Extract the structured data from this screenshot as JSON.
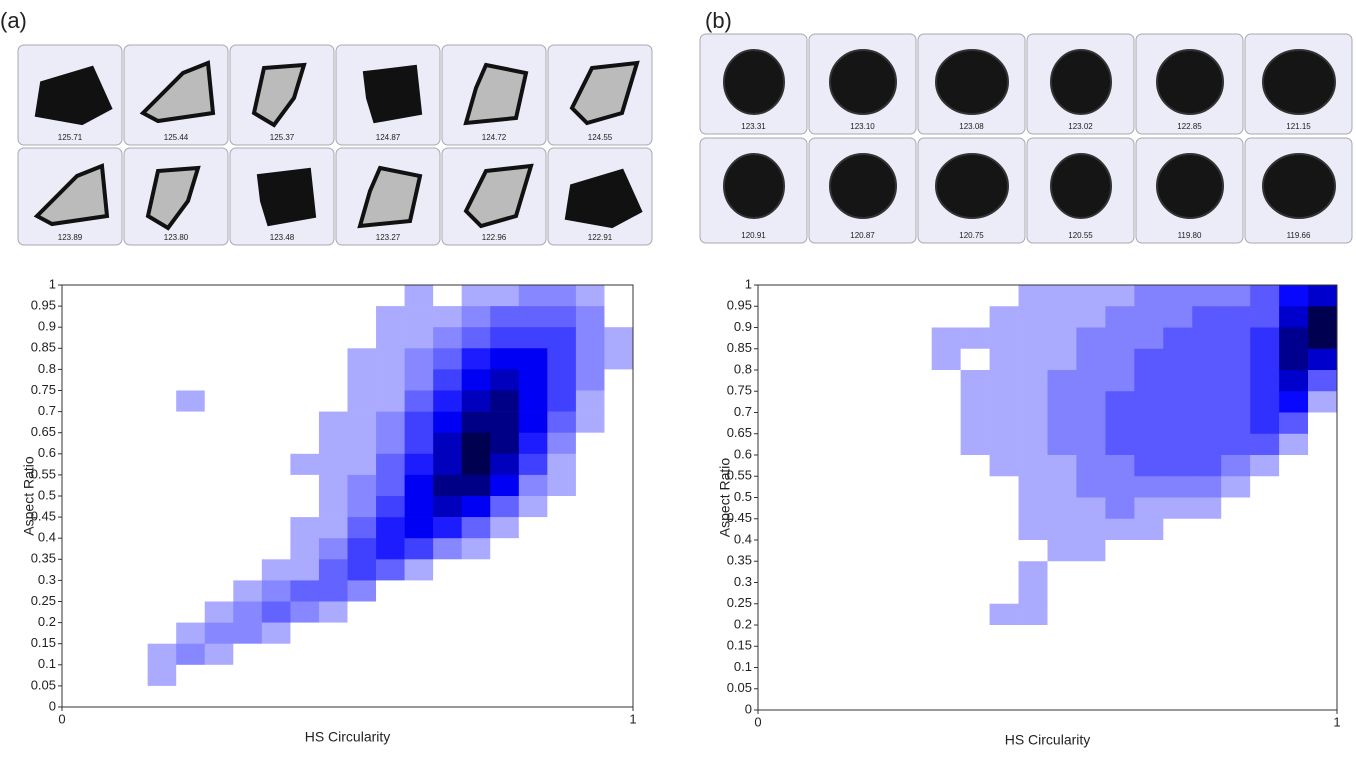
{
  "chart_data": [
    {
      "type": "heatmap",
      "panel": "(a)",
      "xlabel": "HS Circularity",
      "ylabel": "Aspect Ratio",
      "xlim": [
        0,
        1
      ],
      "ylim": [
        0,
        1
      ],
      "xticks": [
        0,
        1
      ],
      "yticks": [
        0,
        0.05,
        0.1,
        0.15,
        0.2,
        0.25,
        0.3,
        0.35,
        0.4,
        0.45,
        0.5,
        0.55,
        0.6,
        0.65,
        0.7,
        0.75,
        0.8,
        0.85,
        0.9,
        0.95,
        1
      ],
      "color": "#0000ff",
      "thumbnails": [
        [
          "125.71",
          "125.44",
          "125.37",
          "124.87",
          "124.72",
          "124.55"
        ],
        [
          "123.89",
          "123.80",
          "123.48",
          "123.27",
          "122.96",
          "122.91"
        ]
      ],
      "z": [
        [
          0,
          0,
          0,
          0,
          0,
          0,
          0,
          0,
          0,
          0,
          0,
          0,
          1,
          0,
          1,
          1,
          2,
          2,
          1,
          0
        ],
        [
          0,
          0,
          0,
          0,
          0,
          0,
          0,
          0,
          0,
          0,
          0,
          1,
          1,
          1,
          2,
          3,
          3,
          3,
          2,
          0
        ],
        [
          0,
          0,
          0,
          0,
          0,
          0,
          0,
          0,
          0,
          0,
          0,
          1,
          1,
          2,
          3,
          4,
          4,
          4,
          2,
          1
        ],
        [
          0,
          0,
          0,
          0,
          0,
          0,
          0,
          0,
          0,
          0,
          1,
          1,
          2,
          3,
          5,
          6,
          6,
          4,
          2,
          1
        ],
        [
          0,
          0,
          0,
          0,
          0,
          0,
          0,
          0,
          0,
          0,
          1,
          1,
          2,
          4,
          6,
          7,
          6,
          4,
          2,
          0
        ],
        [
          0,
          0,
          0,
          0,
          1,
          0,
          0,
          0,
          0,
          0,
          1,
          1,
          3,
          5,
          7,
          8,
          6,
          4,
          1,
          0
        ],
        [
          0,
          0,
          0,
          0,
          0,
          0,
          0,
          0,
          0,
          1,
          1,
          2,
          4,
          6,
          8,
          8,
          6,
          3,
          1,
          0
        ],
        [
          0,
          0,
          0,
          0,
          0,
          0,
          0,
          0,
          0,
          1,
          1,
          2,
          4,
          7,
          9,
          8,
          5,
          2,
          0,
          0
        ],
        [
          0,
          0,
          0,
          0,
          0,
          0,
          0,
          0,
          1,
          1,
          1,
          3,
          5,
          7,
          9,
          7,
          4,
          1,
          0,
          0
        ],
        [
          0,
          0,
          0,
          0,
          0,
          0,
          0,
          0,
          0,
          1,
          2,
          3,
          6,
          8,
          8,
          6,
          2,
          1,
          0,
          0
        ],
        [
          0,
          0,
          0,
          0,
          0,
          0,
          0,
          0,
          0,
          1,
          2,
          4,
          6,
          7,
          6,
          3,
          1,
          0,
          0,
          0
        ],
        [
          0,
          0,
          0,
          0,
          0,
          0,
          0,
          0,
          1,
          1,
          3,
          5,
          6,
          5,
          3,
          1,
          0,
          0,
          0,
          0
        ],
        [
          0,
          0,
          0,
          0,
          0,
          0,
          0,
          0,
          1,
          2,
          4,
          5,
          4,
          2,
          1,
          0,
          0,
          0,
          0,
          0
        ],
        [
          0,
          0,
          0,
          0,
          0,
          0,
          0,
          1,
          1,
          3,
          4,
          3,
          1,
          0,
          0,
          0,
          0,
          0,
          0,
          0
        ],
        [
          0,
          0,
          0,
          0,
          0,
          0,
          1,
          2,
          3,
          3,
          2,
          0,
          0,
          0,
          0,
          0,
          0,
          0,
          0,
          0
        ],
        [
          0,
          0,
          0,
          0,
          0,
          1,
          2,
          3,
          2,
          1,
          0,
          0,
          0,
          0,
          0,
          0,
          0,
          0,
          0,
          0
        ],
        [
          0,
          0,
          0,
          0,
          1,
          2,
          2,
          1,
          0,
          0,
          0,
          0,
          0,
          0,
          0,
          0,
          0,
          0,
          0,
          0
        ],
        [
          0,
          0,
          0,
          1,
          2,
          1,
          0,
          0,
          0,
          0,
          0,
          0,
          0,
          0,
          0,
          0,
          0,
          0,
          0,
          0
        ],
        [
          0,
          0,
          0,
          1,
          0,
          0,
          0,
          0,
          0,
          0,
          0,
          0,
          0,
          0,
          0,
          0,
          0,
          0,
          0,
          0
        ],
        [
          0,
          0,
          0,
          0,
          0,
          0,
          0,
          0,
          0,
          0,
          0,
          0,
          0,
          0,
          0,
          0,
          0,
          0,
          0,
          0
        ]
      ]
    },
    {
      "type": "heatmap",
      "panel": "(b)",
      "xlabel": "HS Circularity",
      "ylabel": "Aspect Ratio",
      "xlim": [
        0,
        1
      ],
      "ylim": [
        0,
        1
      ],
      "xticks": [
        0,
        1
      ],
      "yticks": [
        0,
        0.05,
        0.1,
        0.15,
        0.2,
        0.25,
        0.3,
        0.35,
        0.4,
        0.45,
        0.5,
        0.55,
        0.6,
        0.65,
        0.7,
        0.75,
        0.8,
        0.85,
        0.9,
        0.95,
        1
      ],
      "color": "#0000ff",
      "thumbnails": [
        [
          "123.31",
          "123.10",
          "123.08",
          "123.02",
          "122.85",
          "121.15"
        ],
        [
          "120.91",
          "120.87",
          "120.75",
          "120.55",
          "119.80",
          "119.66"
        ]
      ],
      "z": [
        [
          0,
          0,
          0,
          0,
          0,
          0,
          0,
          0,
          0,
          1,
          1,
          1,
          1,
          2,
          2,
          2,
          2,
          3,
          5,
          6
        ],
        [
          0,
          0,
          0,
          0,
          0,
          0,
          0,
          0,
          1,
          1,
          1,
          1,
          2,
          2,
          2,
          3,
          3,
          3,
          6,
          8
        ],
        [
          0,
          0,
          0,
          0,
          0,
          0,
          1,
          1,
          1,
          1,
          1,
          2,
          2,
          2,
          3,
          3,
          3,
          4,
          7,
          8
        ],
        [
          0,
          0,
          0,
          0,
          0,
          0,
          1,
          0,
          1,
          1,
          1,
          2,
          2,
          3,
          3,
          3,
          3,
          4,
          7,
          6
        ],
        [
          0,
          0,
          0,
          0,
          0,
          0,
          0,
          1,
          1,
          1,
          2,
          2,
          2,
          3,
          3,
          3,
          3,
          4,
          6,
          3
        ],
        [
          0,
          0,
          0,
          0,
          0,
          0,
          0,
          1,
          1,
          1,
          2,
          2,
          3,
          3,
          3,
          3,
          3,
          4,
          5,
          1
        ],
        [
          0,
          0,
          0,
          0,
          0,
          0,
          0,
          1,
          1,
          1,
          2,
          2,
          3,
          3,
          3,
          3,
          3,
          4,
          3,
          0
        ],
        [
          0,
          0,
          0,
          0,
          0,
          0,
          0,
          1,
          1,
          1,
          2,
          2,
          3,
          3,
          3,
          3,
          3,
          3,
          1,
          0
        ],
        [
          0,
          0,
          0,
          0,
          0,
          0,
          0,
          0,
          1,
          1,
          1,
          2,
          2,
          3,
          3,
          3,
          2,
          1,
          0,
          0
        ],
        [
          0,
          0,
          0,
          0,
          0,
          0,
          0,
          0,
          0,
          1,
          1,
          2,
          2,
          2,
          2,
          2,
          1,
          0,
          0,
          0
        ],
        [
          0,
          0,
          0,
          0,
          0,
          0,
          0,
          0,
          0,
          1,
          1,
          1,
          2,
          1,
          1,
          1,
          0,
          0,
          0,
          0
        ],
        [
          0,
          0,
          0,
          0,
          0,
          0,
          0,
          0,
          0,
          1,
          1,
          1,
          1,
          1,
          0,
          0,
          0,
          0,
          0,
          0
        ],
        [
          0,
          0,
          0,
          0,
          0,
          0,
          0,
          0,
          0,
          0,
          1,
          1,
          0,
          0,
          0,
          0,
          0,
          0,
          0,
          0
        ],
        [
          0,
          0,
          0,
          0,
          0,
          0,
          0,
          0,
          0,
          1,
          0,
          0,
          0,
          0,
          0,
          0,
          0,
          0,
          0,
          0
        ],
        [
          0,
          0,
          0,
          0,
          0,
          0,
          0,
          0,
          0,
          1,
          0,
          0,
          0,
          0,
          0,
          0,
          0,
          0,
          0,
          0
        ],
        [
          0,
          0,
          0,
          0,
          0,
          0,
          0,
          0,
          1,
          1,
          0,
          0,
          0,
          0,
          0,
          0,
          0,
          0,
          0,
          0
        ],
        [
          0,
          0,
          0,
          0,
          0,
          0,
          0,
          0,
          0,
          0,
          0,
          0,
          0,
          0,
          0,
          0,
          0,
          0,
          0,
          0
        ],
        [
          0,
          0,
          0,
          0,
          0,
          0,
          0,
          0,
          0,
          0,
          0,
          0,
          0,
          0,
          0,
          0,
          0,
          0,
          0,
          0
        ],
        [
          0,
          0,
          0,
          0,
          0,
          0,
          0,
          0,
          0,
          0,
          0,
          0,
          0,
          0,
          0,
          0,
          0,
          0,
          0,
          0
        ],
        [
          0,
          0,
          0,
          0,
          0,
          0,
          0,
          0,
          0,
          0,
          0,
          0,
          0,
          0,
          0,
          0,
          0,
          0,
          0,
          0
        ]
      ]
    }
  ]
}
